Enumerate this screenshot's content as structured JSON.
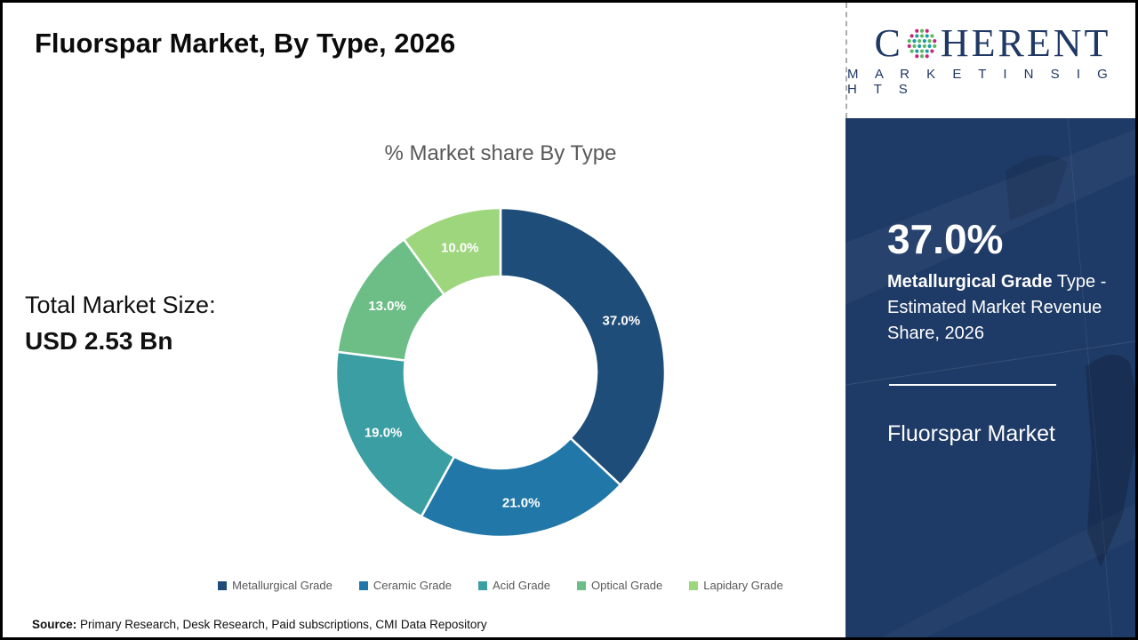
{
  "header": {
    "title": "Fluorspar Market, By Type, 2026"
  },
  "logo": {
    "brand_first_letter": "C",
    "brand_rest": "HERENT",
    "tagline": "M A R K E T   I N S I G H T S",
    "brand_color": "#1f3864",
    "globe_dot_colors": {
      "teal": "#1e9aa8",
      "green": "#5cb85c",
      "magenta": "#c2267d"
    }
  },
  "left_panel": {
    "total_label": "Total Market Size:",
    "total_value": "USD 2.53 Bn"
  },
  "chart_data": {
    "type": "pie",
    "subtype": "donut",
    "title": "% Market share By Type",
    "categories": [
      "Metallurgical Grade",
      "Ceramic Grade",
      "Acid Grade",
      "Optical Grade",
      "Lapidary Grade"
    ],
    "values": [
      37.0,
      21.0,
      19.0,
      13.0,
      10.0
    ],
    "slice_labels": [
      "37.0%",
      "21.0%",
      "19.0%",
      "13.0%",
      "10.0%"
    ],
    "colors": [
      "#1f4d79",
      "#2178a8",
      "#3b9ea2",
      "#6cbe86",
      "#9ed67d"
    ],
    "start_angle_deg": 0,
    "direction": "clockwise",
    "outer_radius": 185,
    "inner_radius": 108,
    "label_radius": 148,
    "legend_position": "bottom"
  },
  "sidebar": {
    "background": "#1e3a66",
    "stat_value": "37.0%",
    "stat_bold": "Metallurgical Grade",
    "stat_rest": " Type - Estimated Market Revenue Share, 2026",
    "footer_title": "Fluorspar Market"
  },
  "source": {
    "label": "Source:",
    "text": " Primary Research, Desk Research, Paid subscriptions, CMI Data Repository"
  }
}
